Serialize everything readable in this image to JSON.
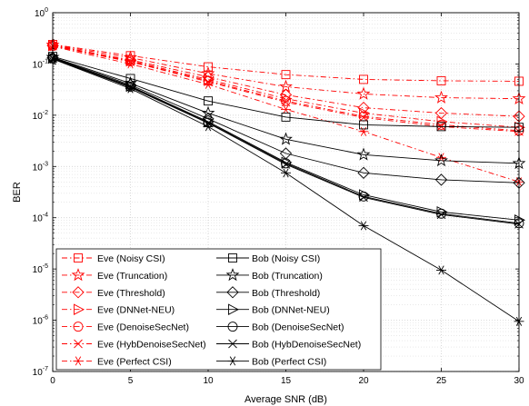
{
  "chart_data": {
    "type": "line",
    "xlabel": "Average SNR (dB)",
    "ylabel": "BER",
    "x": [
      0,
      5,
      10,
      15,
      20,
      25,
      30
    ],
    "xlim": [
      0,
      30
    ],
    "x_ticks": [
      "0",
      "5",
      "10",
      "15",
      "20",
      "25",
      "30"
    ],
    "ylim": [
      1e-07,
      1
    ],
    "y_scale": "log",
    "y_ticks": [
      {
        "base": "10",
        "exp": "0",
        "value": 1
      },
      {
        "base": "10",
        "exp": "-1",
        "value": 0.1
      },
      {
        "base": "10",
        "exp": "-2",
        "value": 0.01
      },
      {
        "base": "10",
        "exp": "-3",
        "value": 0.001
      },
      {
        "base": "10",
        "exp": "-4",
        "value": 0.0001
      },
      {
        "base": "10",
        "exp": "-5",
        "value": 1e-05
      },
      {
        "base": "10",
        "exp": "-6",
        "value": 1e-06
      },
      {
        "base": "10",
        "exp": "-7",
        "value": 1e-07
      }
    ],
    "grid": true,
    "legend_position": "bottom-left",
    "colors": {
      "eve": "#ff0000",
      "bob": "#000000"
    },
    "series": [
      {
        "name": "Eve (Noisy CSI)",
        "color": "#ff0000",
        "dash": "dashdot",
        "marker": "square",
        "values": [
          0.24,
          0.145,
          0.088,
          0.062,
          0.05,
          0.047,
          0.046
        ]
      },
      {
        "name": "Eve (Truncation)",
        "color": "#ff0000",
        "dash": "dashdot",
        "marker": "star5",
        "values": [
          0.235,
          0.133,
          0.065,
          0.036,
          0.026,
          0.022,
          0.021
        ]
      },
      {
        "name": "Eve (Threshold)",
        "color": "#ff0000",
        "dash": "dashdot",
        "marker": "diamond",
        "values": [
          0.23,
          0.12,
          0.056,
          0.025,
          0.014,
          0.011,
          0.0095
        ]
      },
      {
        "name": "Eve (DNNet-NEU)",
        "color": "#ff0000",
        "dash": "dashdot",
        "marker": "triangle-right",
        "values": [
          0.228,
          0.115,
          0.05,
          0.021,
          0.011,
          0.0075,
          0.0058
        ]
      },
      {
        "name": "Eve (DenoiseSecNet)",
        "color": "#ff0000",
        "dash": "dashdot",
        "marker": "circle",
        "values": [
          0.226,
          0.112,
          0.047,
          0.019,
          0.0095,
          0.0065,
          0.005
        ]
      },
      {
        "name": "Eve (HybDenoiseSecNet)",
        "color": "#ff0000",
        "dash": "dashdot",
        "marker": "x",
        "values": [
          0.225,
          0.11,
          0.045,
          0.018,
          0.009,
          0.006,
          0.0048
        ]
      },
      {
        "name": "Eve (Perfect CSI)",
        "color": "#ff0000",
        "dash": "dashdot",
        "marker": "asterisk",
        "values": [
          0.22,
          0.1,
          0.04,
          0.013,
          0.0048,
          0.0015,
          0.0005
        ]
      },
      {
        "name": "Bob (Noisy CSI)",
        "color": "#000000",
        "dash": "solid",
        "marker": "square",
        "values": [
          0.14,
          0.052,
          0.019,
          0.0092,
          0.0065,
          0.006,
          0.0058
        ]
      },
      {
        "name": "Bob (Truncation)",
        "color": "#000000",
        "dash": "solid",
        "marker": "star5",
        "values": [
          0.135,
          0.042,
          0.011,
          0.0034,
          0.0017,
          0.0013,
          0.00115
        ]
      },
      {
        "name": "Bob (Threshold)",
        "color": "#000000",
        "dash": "solid",
        "marker": "diamond",
        "values": [
          0.132,
          0.039,
          0.0085,
          0.0018,
          0.00075,
          0.00055,
          0.00048
        ]
      },
      {
        "name": "Bob (DNNet-NEU)",
        "color": "#000000",
        "dash": "solid",
        "marker": "triangle-right",
        "values": [
          0.13,
          0.037,
          0.0075,
          0.0012,
          0.00028,
          0.00013,
          9e-05
        ]
      },
      {
        "name": "Bob (DenoiseSecNet)",
        "color": "#000000",
        "dash": "solid",
        "marker": "circle",
        "values": [
          0.128,
          0.036,
          0.0072,
          0.00115,
          0.00026,
          0.00012,
          7.8e-05
        ]
      },
      {
        "name": "Bob (HybDenoiseSecNet)",
        "color": "#000000",
        "dash": "solid",
        "marker": "x",
        "values": [
          0.127,
          0.035,
          0.007,
          0.0011,
          0.00025,
          0.000115,
          7.5e-05
        ]
      },
      {
        "name": "Bob (Perfect CSI)",
        "color": "#000000",
        "dash": "solid",
        "marker": "asterisk",
        "values": [
          0.125,
          0.033,
          0.006,
          0.00075,
          7e-05,
          9.5e-06,
          9.5e-07
        ]
      }
    ]
  }
}
